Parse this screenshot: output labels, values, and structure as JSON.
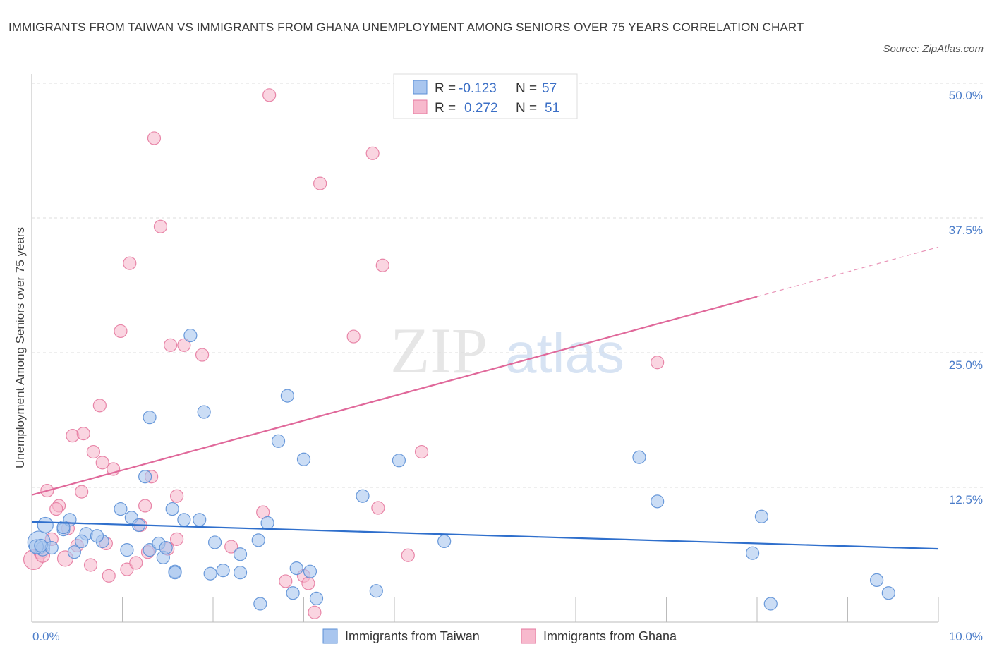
{
  "header": {
    "title": "IMMIGRANTS FROM TAIWAN VS IMMIGRANTS FROM GHANA UNEMPLOYMENT AMONG SENIORS OVER 75 YEARS CORRELATION CHART",
    "source": "Source: ZipAtlas.com"
  },
  "watermark": {
    "zip": "ZIP",
    "atlas": "atlas"
  },
  "colors": {
    "taiwan_fill": "#a9c6ef",
    "taiwan_stroke": "#5b8fd6",
    "taiwan_line": "#2f6fcc",
    "ghana_fill": "#f7b9cd",
    "ghana_stroke": "#e57aa0",
    "ghana_line": "#e0689a",
    "grid": "#dddddd",
    "axis_text": "#4a7cc9"
  },
  "chart_data": {
    "type": "scatter",
    "title": "IMMIGRANTS FROM TAIWAN VS IMMIGRANTS FROM GHANA UNEMPLOYMENT AMONG SENIORS OVER 75 YEARS CORRELATION CHART",
    "xlabel": "",
    "ylabel": "Unemployment Among Seniors over 75 years",
    "xlim": [
      0,
      10
    ],
    "ylim": [
      0,
      50
    ],
    "x_tick_labels": [
      "0.0%",
      "10.0%"
    ],
    "y_ticks": [
      12.5,
      25.0,
      37.5,
      50.0
    ],
    "y_tick_labels": [
      "12.5%",
      "25.0%",
      "37.5%",
      "50.0%"
    ],
    "grid": true,
    "legend_position": "top-center",
    "legend": [
      {
        "series": "Immigrants from Taiwan",
        "r_label": "R =",
        "r_value": "-0.123",
        "n_label": "N =",
        "n_value": "57"
      },
      {
        "series": "Immigrants from Ghana",
        "r_label": "R =",
        "r_value": "0.272",
        "n_label": "N =",
        "n_value": "51"
      }
    ],
    "series": [
      {
        "name": "Immigrants from Taiwan",
        "trend": {
          "x0": 0,
          "y0": 9.3,
          "x1": 10,
          "y1": 6.8
        },
        "points": [
          [
            0.08,
            7.4,
            16
          ],
          [
            0.15,
            9.0,
            11
          ],
          [
            0.12,
            6.8,
            10
          ],
          [
            0.22,
            6.9,
            9
          ],
          [
            0.05,
            7.0,
            10
          ],
          [
            0.35,
            8.6,
            9
          ],
          [
            0.42,
            9.5,
            9
          ],
          [
            0.47,
            6.5,
            9
          ],
          [
            0.6,
            8.2,
            9
          ],
          [
            0.55,
            7.5,
            9
          ],
          [
            0.78,
            7.5,
            9
          ],
          [
            0.72,
            8.0,
            9
          ],
          [
            0.98,
            10.5,
            9
          ],
          [
            1.1,
            9.7,
            9
          ],
          [
            1.05,
            6.7,
            9
          ],
          [
            1.18,
            9.0,
            9
          ],
          [
            1.3,
            6.7,
            9
          ],
          [
            1.25,
            13.5,
            9
          ],
          [
            1.3,
            19.0,
            9
          ],
          [
            1.4,
            7.3,
            9
          ],
          [
            1.45,
            6.0,
            9
          ],
          [
            1.48,
            6.9,
            9
          ],
          [
            1.58,
            4.7,
            9
          ],
          [
            1.55,
            10.5,
            9
          ],
          [
            1.68,
            9.5,
            9
          ],
          [
            1.75,
            26.6,
            9
          ],
          [
            1.85,
            9.5,
            9
          ],
          [
            1.9,
            19.5,
            9
          ],
          [
            1.97,
            4.5,
            9
          ],
          [
            2.02,
            7.4,
            9
          ],
          [
            2.11,
            4.8,
            9
          ],
          [
            2.3,
            4.6,
            9
          ],
          [
            2.3,
            6.3,
            9
          ],
          [
            2.5,
            7.6,
            9
          ],
          [
            2.52,
            1.7,
            9
          ],
          [
            2.6,
            9.2,
            9
          ],
          [
            2.72,
            16.8,
            9
          ],
          [
            2.82,
            21.0,
            9
          ],
          [
            2.88,
            2.7,
            9
          ],
          [
            2.92,
            5.0,
            9
          ],
          [
            3.0,
            15.1,
            9
          ],
          [
            3.07,
            4.7,
            9
          ],
          [
            3.14,
            2.2,
            9
          ],
          [
            3.65,
            11.7,
            9
          ],
          [
            3.8,
            2.9,
            9
          ],
          [
            4.05,
            15.0,
            9
          ],
          [
            4.55,
            7.5,
            9
          ],
          [
            6.7,
            15.3,
            9
          ],
          [
            6.9,
            11.2,
            9
          ],
          [
            7.95,
            6.4,
            9
          ],
          [
            8.05,
            9.8,
            9
          ],
          [
            8.15,
            1.7,
            9
          ],
          [
            9.32,
            3.9,
            9
          ],
          [
            9.45,
            2.7,
            9
          ],
          [
            0.35,
            8.8,
            9
          ],
          [
            0.1,
            7.1,
            9
          ],
          [
            1.58,
            4.6,
            9
          ]
        ]
      },
      {
        "name": "Immigrants from Ghana",
        "trend": {
          "x0": 0,
          "y0": 11.8,
          "x1": 8.0,
          "y1": 30.2
        },
        "trend_dashed": {
          "x0": 8.0,
          "y0": 30.2,
          "x1": 10.0,
          "y1": 34.8
        },
        "points": [
          [
            0.02,
            5.8,
            14
          ],
          [
            0.1,
            6.5,
            10
          ],
          [
            0.12,
            6.2,
            10
          ],
          [
            0.17,
            12.2,
            9
          ],
          [
            0.22,
            7.7,
            9
          ],
          [
            0.3,
            10.8,
            9
          ],
          [
            0.27,
            10.5,
            9
          ],
          [
            0.37,
            5.9,
            11
          ],
          [
            0.4,
            8.7,
            9
          ],
          [
            0.45,
            17.3,
            9
          ],
          [
            0.5,
            7.1,
            9
          ],
          [
            0.55,
            12.1,
            9
          ],
          [
            0.57,
            17.5,
            9
          ],
          [
            0.65,
            5.3,
            9
          ],
          [
            0.68,
            15.8,
            9
          ],
          [
            0.75,
            20.1,
            9
          ],
          [
            0.78,
            14.8,
            9
          ],
          [
            0.82,
            7.3,
            9
          ],
          [
            0.85,
            4.3,
            9
          ],
          [
            0.9,
            14.2,
            9
          ],
          [
            0.98,
            27.0,
            9
          ],
          [
            1.05,
            4.9,
            9
          ],
          [
            1.08,
            33.3,
            9
          ],
          [
            1.15,
            5.5,
            9
          ],
          [
            1.2,
            9.0,
            9
          ],
          [
            1.25,
            10.8,
            9
          ],
          [
            1.28,
            6.5,
            9
          ],
          [
            1.32,
            13.5,
            9
          ],
          [
            1.35,
            44.9,
            9
          ],
          [
            1.42,
            36.7,
            9
          ],
          [
            1.5,
            6.8,
            9
          ],
          [
            1.53,
            25.7,
            9
          ],
          [
            1.6,
            7.7,
            9
          ],
          [
            1.6,
            11.7,
            9
          ],
          [
            1.68,
            25.7,
            9
          ],
          [
            1.88,
            24.8,
            9
          ],
          [
            2.2,
            7.0,
            9
          ],
          [
            2.55,
            10.2,
            9
          ],
          [
            2.62,
            48.9,
            9
          ],
          [
            2.8,
            3.8,
            9
          ],
          [
            3.0,
            4.3,
            9
          ],
          [
            3.05,
            3.6,
            9
          ],
          [
            3.12,
            0.9,
            9
          ],
          [
            3.18,
            40.7,
            9
          ],
          [
            3.55,
            26.5,
            9
          ],
          [
            3.76,
            43.5,
            9
          ],
          [
            3.82,
            10.6,
            9
          ],
          [
            3.87,
            33.1,
            9
          ],
          [
            4.15,
            6.2,
            9
          ],
          [
            4.3,
            15.8,
            9
          ],
          [
            6.9,
            24.1,
            9
          ]
        ]
      }
    ]
  }
}
